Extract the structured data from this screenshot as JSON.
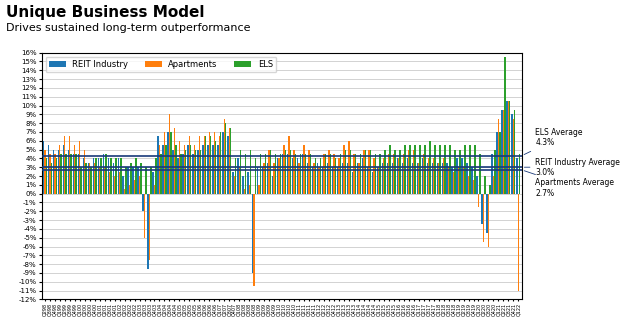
{
  "chart_data": {
    "type": "bar",
    "title": "Unique Business Model",
    "subtitle": "Drives sustained long-term outperformance",
    "categories": [
      "Q298",
      "Q398",
      "Q498",
      "Q199",
      "Q299",
      "Q399",
      "Q499",
      "Q100",
      "Q200",
      "Q300",
      "Q400",
      "Q101",
      "Q201",
      "Q301",
      "Q401",
      "Q102",
      "Q202",
      "Q302",
      "Q402",
      "Q103",
      "Q203",
      "Q303",
      "Q403",
      "Q104",
      "Q204",
      "Q304",
      "Q404",
      "Q105",
      "Q205",
      "Q305",
      "Q405",
      "Q106",
      "Q206",
      "Q306",
      "Q406",
      "Q107",
      "Q207",
      "Q307",
      "Q407",
      "Q108",
      "Q208",
      "Q308",
      "Q408",
      "Q109",
      "Q209",
      "Q309",
      "Q409",
      "Q110",
      "Q210",
      "Q310",
      "Q410",
      "Q111",
      "Q211",
      "Q311",
      "Q411",
      "Q112",
      "Q212",
      "Q312",
      "Q412",
      "Q113",
      "Q213",
      "Q313",
      "Q413",
      "Q114",
      "Q214",
      "Q314",
      "Q414",
      "Q115",
      "Q215",
      "Q315",
      "Q415",
      "Q116",
      "Q216",
      "Q316",
      "Q416",
      "Q117",
      "Q217",
      "Q317",
      "Q417",
      "Q118",
      "Q218",
      "Q318",
      "Q418",
      "Q119",
      "Q219",
      "Q319",
      "Q419",
      "Q120",
      "Q220",
      "Q320",
      "Q420",
      "Q121",
      "Q221",
      "Q321",
      "Q421",
      "Q122"
    ],
    "series": [
      {
        "name": "REIT Industry",
        "values": [
          6.0,
          5.5,
          5.0,
          5.0,
          5.5,
          5.0,
          4.5,
          4.5,
          4.0,
          3.5,
          4.0,
          4.0,
          4.5,
          4.0,
          3.5,
          4.0,
          2.0,
          3.0,
          3.0,
          3.0,
          -2.0,
          -8.5,
          2.5,
          6.5,
          5.5,
          7.0,
          5.0,
          4.0,
          4.5,
          5.5,
          4.5,
          5.0,
          5.5,
          5.5,
          5.5,
          5.5,
          7.0,
          6.5,
          2.5,
          4.0,
          2.0,
          2.5,
          -9.0,
          3.0,
          3.0,
          3.5,
          2.0,
          4.0,
          4.5,
          4.5,
          4.0,
          4.0,
          4.5,
          3.5,
          3.0,
          3.5,
          3.0,
          3.5,
          3.0,
          3.0,
          3.5,
          3.5,
          2.5,
          3.5,
          4.0,
          3.0,
          2.5,
          3.0,
          3.5,
          3.5,
          3.5,
          4.0,
          3.5,
          4.0,
          3.5,
          3.5,
          4.0,
          3.5,
          3.5,
          3.5,
          3.5,
          3.5,
          3.0,
          4.0,
          4.0,
          3.5,
          3.0,
          2.0,
          -3.5,
          -4.5,
          4.5,
          7.0,
          9.5,
          10.5,
          9.0,
          4.0
        ]
      },
      {
        "name": "Apartments",
        "values": [
          5.0,
          4.5,
          4.5,
          5.5,
          6.5,
          6.5,
          5.5,
          6.0,
          5.0,
          3.5,
          3.5,
          3.0,
          3.0,
          2.5,
          2.0,
          2.5,
          0.5,
          1.0,
          1.5,
          2.0,
          -5.0,
          -7.5,
          1.0,
          5.5,
          7.0,
          9.0,
          7.5,
          6.0,
          5.5,
          6.5,
          5.5,
          6.5,
          6.5,
          7.0,
          7.0,
          6.5,
          8.5,
          7.5,
          2.0,
          3.0,
          0.5,
          1.0,
          -10.5,
          1.0,
          3.5,
          5.0,
          3.5,
          4.0,
          5.5,
          6.5,
          5.0,
          3.5,
          5.5,
          5.0,
          3.5,
          3.0,
          4.5,
          5.0,
          4.5,
          4.0,
          5.5,
          6.0,
          4.5,
          3.5,
          5.0,
          5.0,
          4.0,
          3.0,
          4.0,
          4.5,
          4.5,
          4.0,
          4.5,
          5.0,
          5.0,
          3.5,
          4.5,
          4.0,
          4.0,
          3.5,
          4.0,
          3.0,
          2.5,
          3.0,
          3.0,
          2.0,
          1.5,
          -1.5,
          -5.5,
          -6.0,
          2.0,
          8.5,
          9.5,
          10.5,
          8.5,
          -11.0
        ]
      },
      {
        "name": "ELS",
        "values": [
          4.0,
          3.5,
          4.0,
          4.5,
          4.5,
          4.5,
          4.5,
          3.0,
          3.5,
          3.0,
          4.0,
          4.0,
          4.5,
          4.0,
          4.0,
          4.0,
          3.0,
          3.5,
          4.0,
          3.5,
          3.0,
          3.0,
          4.0,
          4.5,
          5.5,
          7.0,
          5.5,
          4.5,
          5.0,
          5.5,
          5.0,
          5.0,
          6.5,
          6.5,
          6.0,
          7.0,
          8.0,
          7.5,
          4.0,
          5.0,
          4.5,
          5.0,
          4.0,
          4.5,
          4.5,
          5.0,
          4.5,
          4.5,
          5.0,
          5.0,
          4.5,
          4.5,
          4.5,
          4.5,
          4.0,
          4.0,
          4.5,
          4.5,
          4.0,
          4.5,
          5.0,
          5.0,
          4.5,
          4.5,
          5.0,
          5.0,
          4.5,
          4.5,
          5.0,
          5.5,
          5.0,
          5.0,
          5.5,
          5.5,
          5.5,
          5.5,
          5.5,
          6.0,
          5.5,
          5.5,
          5.5,
          5.5,
          5.0,
          5.0,
          5.5,
          5.5,
          5.5,
          4.5,
          2.0,
          1.0,
          5.0,
          7.0,
          15.5,
          10.5,
          9.5,
          4.5
        ]
      }
    ],
    "ylim": [
      -12,
      16
    ],
    "yticks": [
      {
        "value": -12,
        "label": "-12%"
      },
      {
        "value": -11,
        "label": "-11%"
      },
      {
        "value": -10,
        "label": "-10%"
      },
      {
        "value": -9,
        "label": "-9%"
      },
      {
        "value": -8,
        "label": "-8%"
      },
      {
        "value": -7,
        "label": "-7%"
      },
      {
        "value": -6,
        "label": "-6%"
      },
      {
        "value": -5,
        "label": "-5%"
      },
      {
        "value": -4,
        "label": "-4%"
      },
      {
        "value": -3,
        "label": "-3%"
      },
      {
        "value": -2,
        "label": "-2%"
      },
      {
        "value": -1,
        "label": "-1%"
      },
      {
        "value": 0,
        "label": "0%"
      },
      {
        "value": 1,
        "label": "1%"
      },
      {
        "value": 2,
        "label": "2%"
      },
      {
        "value": 3,
        "label": "3%"
      },
      {
        "value": 4,
        "label": "4%"
      },
      {
        "value": 5,
        "label": "5%"
      },
      {
        "value": 6,
        "label": "6%"
      },
      {
        "value": 7,
        "label": "7%"
      },
      {
        "value": 8,
        "label": "8%"
      },
      {
        "value": 9,
        "label": "9%"
      },
      {
        "value": 10,
        "label": "10%"
      },
      {
        "value": 11,
        "label": "11%"
      },
      {
        "value": 12,
        "label": "12%"
      },
      {
        "value": 13,
        "label": "13%"
      },
      {
        "value": 14,
        "label": "14%"
      },
      {
        "value": 15,
        "label": "15%"
      },
      {
        "value": 16,
        "label": "16%"
      }
    ],
    "grid": true,
    "legend": "upper left",
    "annotations": [
      {
        "text": "ELS Average",
        "y": 4.3,
        "label": "4.3%",
        "color": "#1a3a7a"
      },
      {
        "text": "REIT Industry Average",
        "y": 3.0,
        "label": "3.0%",
        "color": "#1a3a7a"
      },
      {
        "text": "Apartments Average",
        "y": 2.7,
        "label": "2.7%",
        "color": "#1a3a7a"
      }
    ]
  }
}
